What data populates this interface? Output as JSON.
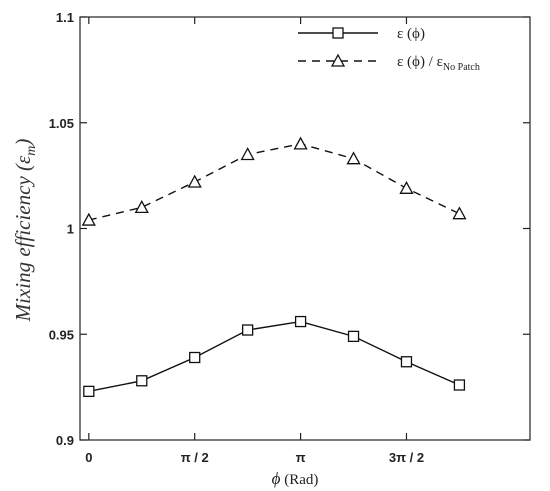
{
  "chart_data": {
    "type": "line",
    "ylabel": "Mixing efficiency (ε",
    "ylabel_sub": "m",
    "ylabel_close": ")",
    "xlabel_symbol": "ϕ",
    "xlabel_unit": " (Rad)",
    "ylim": [
      0.9,
      1.1
    ],
    "yticks": [
      {
        "value": 0.9,
        "label": "0.9"
      },
      {
        "value": 0.95,
        "label": "0.95"
      },
      {
        "value": 1.0,
        "label": "1"
      },
      {
        "value": 1.05,
        "label": "1.05"
      },
      {
        "value": 1.1,
        "label": "1.1"
      }
    ],
    "xlim": [
      -0.1309,
      6.545
    ],
    "xticks": [
      {
        "value": 0,
        "label": "0"
      },
      {
        "value": 1.5708,
        "label": "π / 2"
      },
      {
        "value": 3.1416,
        "label": "π"
      },
      {
        "value": 4.7124,
        "label": "3π / 2"
      }
    ],
    "x": [
      0,
      0.7854,
      1.5708,
      2.3562,
      3.1416,
      3.927,
      4.7124,
      5.4978
    ],
    "series": [
      {
        "name": "ε (ϕ)",
        "legend_sub": "",
        "marker": "square",
        "line": "solid",
        "values": [
          0.923,
          0.928,
          0.939,
          0.952,
          0.956,
          0.949,
          0.937,
          0.926
        ]
      },
      {
        "name": "ε (ϕ) / ε",
        "legend_sub": "No Patch",
        "marker": "triangle",
        "line": "dashed",
        "values": [
          1.004,
          1.01,
          1.022,
          1.035,
          1.04,
          1.033,
          1.019,
          1.007
        ]
      }
    ],
    "legend_position": "top-right",
    "grid": false
  }
}
